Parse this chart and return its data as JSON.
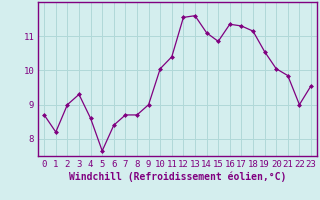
{
  "x": [
    0,
    1,
    2,
    3,
    4,
    5,
    6,
    7,
    8,
    9,
    10,
    11,
    12,
    13,
    14,
    15,
    16,
    17,
    18,
    19,
    20,
    21,
    22,
    23
  ],
  "y": [
    8.7,
    8.2,
    9.0,
    9.3,
    8.6,
    7.65,
    8.4,
    8.7,
    8.7,
    9.0,
    10.05,
    10.4,
    11.55,
    11.6,
    11.1,
    10.85,
    11.35,
    11.3,
    11.15,
    10.55,
    10.05,
    9.85,
    9.0,
    9.55
  ],
  "line_color": "#800080",
  "marker": "D",
  "marker_size": 2,
  "bg_color": "#d4eeee",
  "grid_color": "#b0d8d8",
  "xlabel": "Windchill (Refroidissement éolien,°C)",
  "xlabel_color": "#800080",
  "xlabel_fontsize": 7,
  "tick_color": "#800080",
  "tick_fontsize": 6.5,
  "ylim": [
    7.5,
    12.0
  ],
  "yticks": [
    8,
    9,
    10,
    11
  ],
  "xlim": [
    -0.5,
    23.5
  ],
  "xticks": [
    0,
    1,
    2,
    3,
    4,
    5,
    6,
    7,
    8,
    9,
    10,
    11,
    12,
    13,
    14,
    15,
    16,
    17,
    18,
    19,
    20,
    21,
    22,
    23
  ],
  "spine_color": "#800080"
}
